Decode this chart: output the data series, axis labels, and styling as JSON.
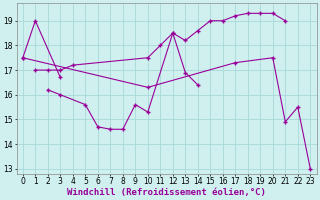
{
  "background_color": "#d0f0f0",
  "grid_color": "#a8d8d8",
  "line_color": "#990099",
  "marker": "+",
  "markersize": 3,
  "linewidth": 0.8,
  "xlabel": "Windchill (Refroidissement éolien,°C)",
  "xlabel_fontsize": 6.5,
  "tick_fontsize": 5.5,
  "ylim": [
    12.8,
    19.7
  ],
  "xlim": [
    -0.5,
    23.5
  ],
  "yticks": [
    13,
    14,
    15,
    16,
    17,
    18,
    19
  ],
  "xticks": [
    0,
    1,
    2,
    3,
    4,
    5,
    6,
    7,
    8,
    9,
    10,
    11,
    12,
    13,
    14,
    15,
    16,
    17,
    18,
    19,
    20,
    21,
    22,
    23
  ],
  "line1_x": [
    0,
    1,
    3
  ],
  "line1_y": [
    17.5,
    19.0,
    16.7
  ],
  "line2_x": [
    1,
    2,
    3,
    4,
    10,
    11,
    12,
    13,
    14,
    15,
    16,
    17,
    18,
    19,
    20,
    21
  ],
  "line2_y": [
    17.0,
    17.0,
    17.0,
    17.2,
    17.5,
    18.0,
    18.5,
    18.2,
    18.6,
    19.0,
    19.0,
    19.2,
    19.3,
    19.3,
    19.3,
    19.0
  ],
  "line3_x": [
    0,
    10,
    17,
    20,
    21,
    22,
    23
  ],
  "line3_y": [
    17.5,
    16.3,
    17.3,
    17.5,
    14.9,
    15.5,
    13.0
  ],
  "line4_x": [
    2,
    3,
    5,
    6,
    7,
    8,
    9,
    10,
    12,
    13,
    14
  ],
  "line4_y": [
    16.2,
    16.0,
    15.6,
    14.7,
    14.6,
    14.6,
    15.6,
    15.3,
    18.5,
    16.9,
    16.4
  ]
}
